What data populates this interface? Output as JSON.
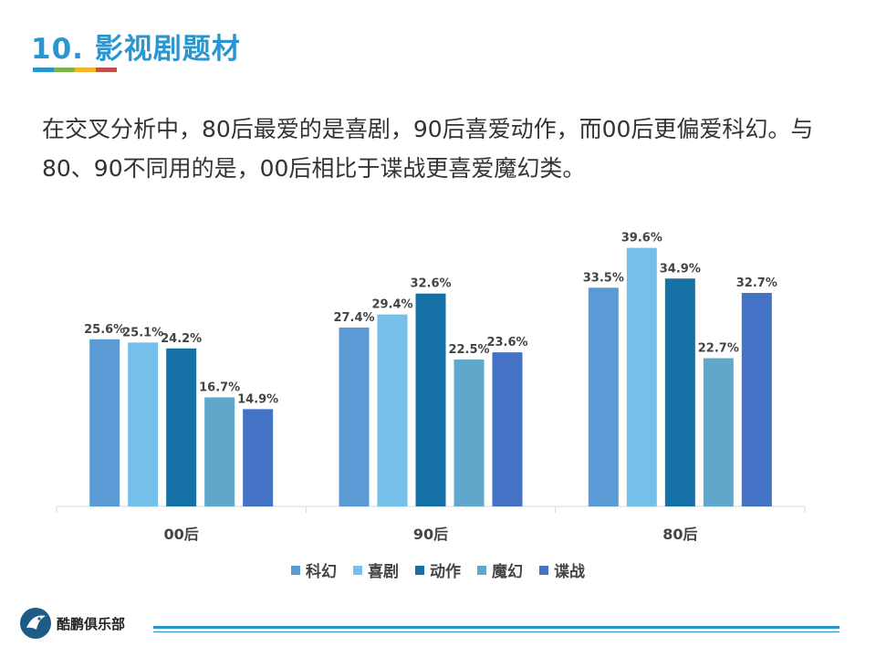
{
  "title": "10. 影视剧题材",
  "body_text": "在交叉分析中，80后最爱的是喜剧，90后喜爱动作，而00后更偏爱科幻。与80、90不同用的是，00后相比于谍战更喜爱魔幻类。",
  "logo": {
    "text": "酷鹏俱乐部",
    "icon": "penguin-icon"
  },
  "colors": {
    "title": "#2a96cf",
    "title_bar": [
      "#2a96cf",
      "#7ab648",
      "#f3b62a",
      "#c0504d"
    ],
    "footer_line": "#2a96cf"
  },
  "chart_data": {
    "type": "bar",
    "categories": [
      "00后",
      "90后",
      "80后"
    ],
    "series": [
      {
        "name": "科幻",
        "color": "#5b9bd5",
        "values": [
          25.6,
          27.4,
          33.5
        ]
      },
      {
        "name": "喜剧",
        "color": "#74c0ea",
        "values": [
          25.1,
          29.4,
          39.6
        ]
      },
      {
        "name": "动作",
        "color": "#1570a6",
        "values": [
          24.2,
          32.6,
          34.9
        ]
      },
      {
        "name": "魔幻",
        "color": "#5fa8cc",
        "values": [
          16.7,
          22.5,
          22.7
        ]
      },
      {
        "name": "谍战",
        "color": "#4472c4",
        "values": [
          14.9,
          23.6,
          32.7
        ]
      }
    ],
    "value_suffix": "%",
    "ylim": [
      0,
      45
    ],
    "legend": "bottom",
    "grid": false
  }
}
